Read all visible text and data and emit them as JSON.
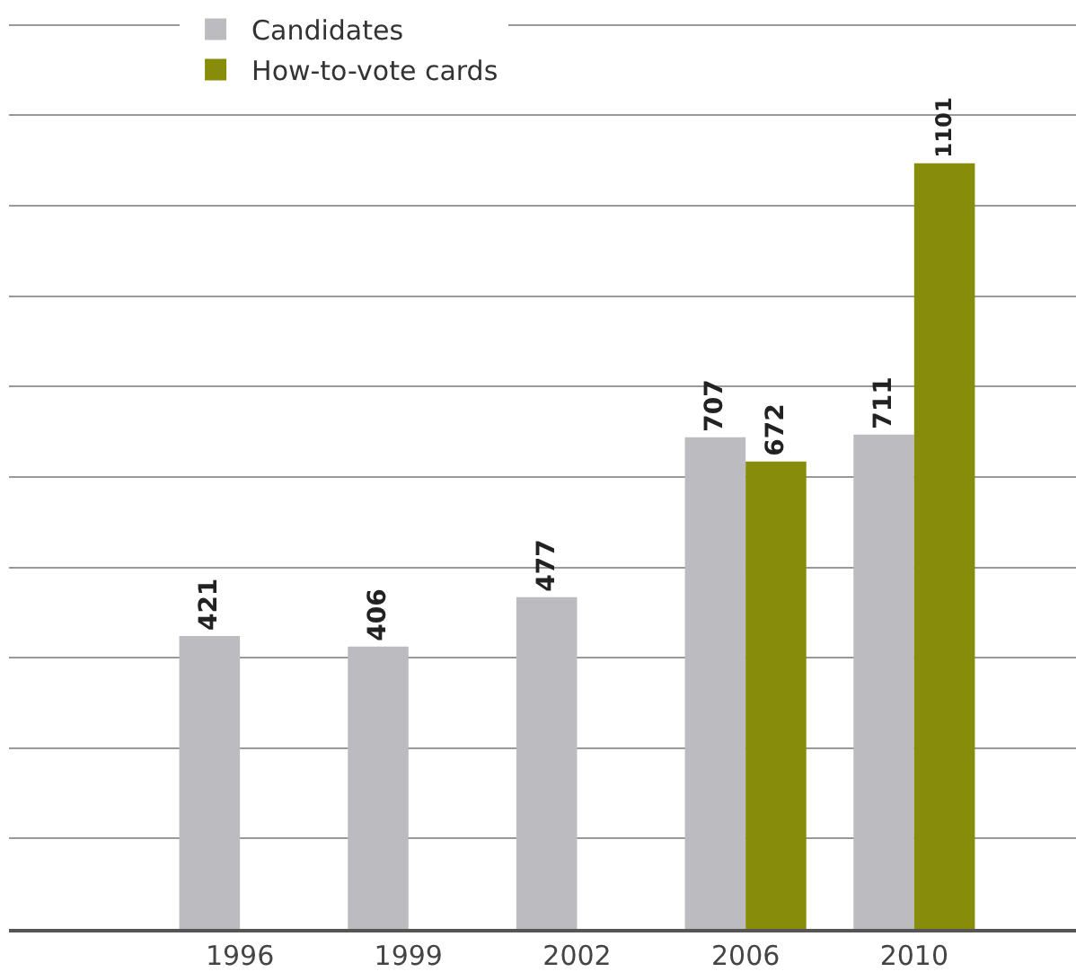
{
  "chart_data": {
    "type": "bar",
    "categories": [
      "1996",
      "1999",
      "2002",
      "2006",
      "2010"
    ],
    "series": [
      {
        "name": "Candidates",
        "color": "#bcbcc0",
        "values": [
          421,
          406,
          477,
          707,
          711
        ]
      },
      {
        "name": "How-to-vote cards",
        "color": "#878c0a",
        "values": [
          null,
          null,
          null,
          672,
          1101
        ]
      }
    ],
    "data_labels": true,
    "ylim": [
      0,
      1310
    ],
    "yticks": [
      {
        "value": 0,
        "label": null
      },
      {
        "value": 130,
        "label": null
      },
      {
        "value": 260,
        "label": null
      },
      {
        "value": 390,
        "label": null
      },
      {
        "value": 520,
        "label": null
      },
      {
        "value": 650,
        "label": null
      },
      {
        "value": 780,
        "label": null
      },
      {
        "value": 910,
        "label": null
      },
      {
        "value": 1040,
        "label": null
      },
      {
        "value": 1170,
        "label": null
      },
      {
        "value": 1300,
        "label": null
      }
    ],
    "tick_labels": "x",
    "grid": "y",
    "legend": "top left"
  }
}
